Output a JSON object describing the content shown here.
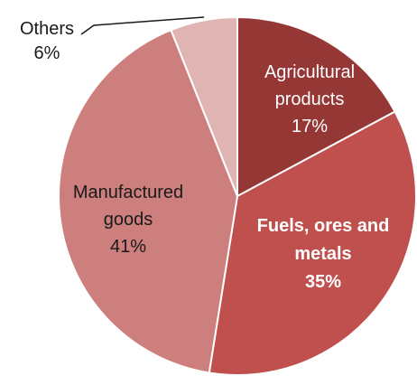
{
  "chart_data": {
    "type": "pie",
    "title": "",
    "slices": [
      {
        "key": "agricultural",
        "label_lines": [
          "Agricultural",
          "products"
        ],
        "value": 17,
        "value_label": "17%",
        "color": "#953735",
        "text_color": "#ffffff",
        "bold": false
      },
      {
        "key": "fuels",
        "label_lines": [
          "Fuels, ores and",
          "metals"
        ],
        "value": 35,
        "value_label": "35%",
        "color": "#c0504d",
        "text_color": "#ffffff",
        "bold": true
      },
      {
        "key": "manufactured",
        "label_lines": [
          "Manufactured",
          "goods"
        ],
        "value": 41,
        "value_label": "41%",
        "color": "#cd7f7d",
        "text_color": "#1a1a1a",
        "bold": false
      },
      {
        "key": "others",
        "label_lines": [
          "Others"
        ],
        "value": 6,
        "value_label": "6%",
        "color": "#dfb4b3",
        "text_color": "#1a1a1a",
        "bold": false
      }
    ],
    "start_angle_deg": 0,
    "direction": "clockwise",
    "legend": "none",
    "data_labels": "inside, with external leader line for Others"
  }
}
